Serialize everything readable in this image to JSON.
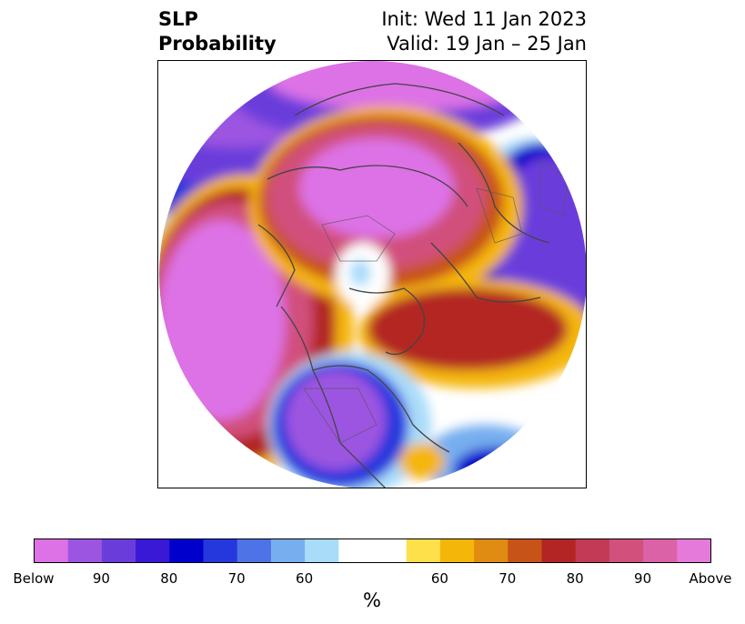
{
  "title": {
    "left_line1": "SLP",
    "left_line2": "Probability",
    "right_line1": "Init: Wed 11 Jan 2023",
    "right_line2": "Valid: 19 Jan – 25 Jan"
  },
  "colorbar": {
    "colors": [
      "#dd72e6",
      "#9c55e1",
      "#6a3ddb",
      "#3918d6",
      "#0000cc",
      "#2538dd",
      "#4d73e6",
      "#76aeef",
      "#a9dcf9",
      "#ffffff",
      "#ffffff",
      "#fde04a",
      "#f5b60a",
      "#e08b12",
      "#c85318",
      "#b32524",
      "#c23a55",
      "#d1507c",
      "#dc62a8",
      "#e57adb"
    ],
    "labels": [
      "Below",
      "90",
      "80",
      "70",
      "60",
      "60",
      "70",
      "80",
      "90",
      "Above"
    ],
    "unit": "%"
  }
}
